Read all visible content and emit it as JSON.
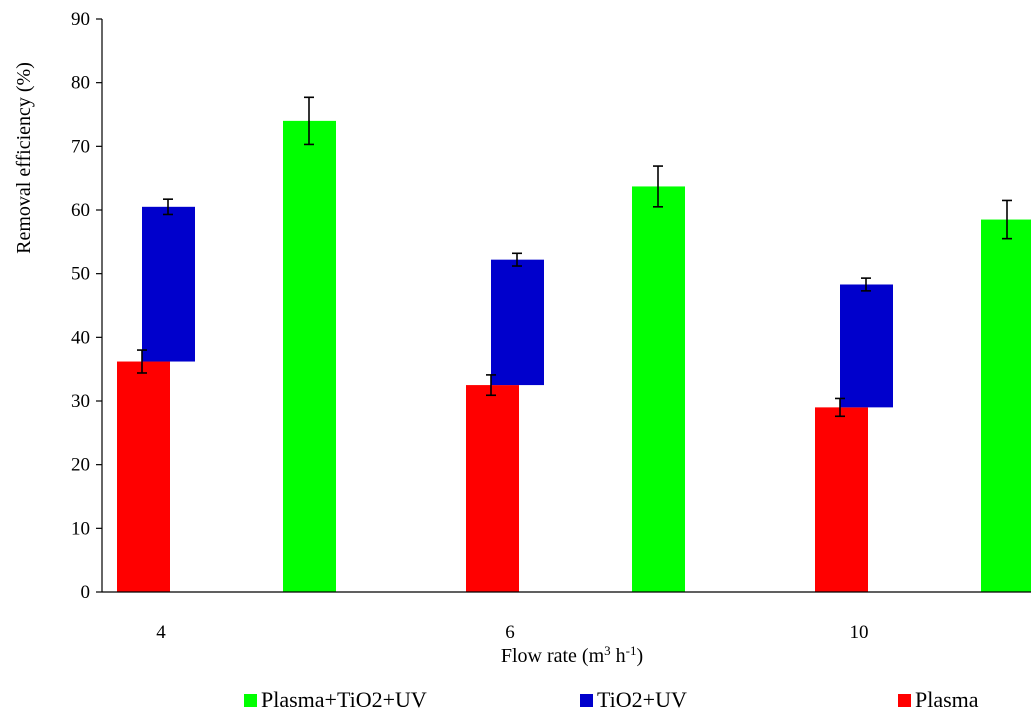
{
  "chart_data": {
    "type": "bar",
    "categories": [
      "4",
      "6",
      "10"
    ],
    "xlabel": {
      "base": "Flow rate (m",
      "sup1": "3",
      "mid": " h",
      "sup2": "-1",
      "end": ")"
    },
    "ylabel": "Removal efficiency (%)",
    "ylim": [
      0,
      90
    ],
    "yticks": [
      0,
      10,
      20,
      30,
      40,
      50,
      60,
      70,
      80,
      90
    ],
    "grid": false,
    "legend_position": "bottom",
    "series": [
      {
        "name": "Plasma",
        "color": "#ff0000",
        "values": [
          36.2,
          32.5,
          29.0
        ],
        "errors": [
          1.8,
          1.6,
          1.4
        ]
      },
      {
        "name": "TiO2+UV",
        "color": "#0000cc",
        "values": [
          60.5,
          52.2,
          48.3
        ],
        "base": [
          36.2,
          32.5,
          29.0
        ],
        "errors": [
          1.2,
          1.0,
          1.0
        ]
      },
      {
        "name": "Plasma+TiO2+UV",
        "color": "#00ff00",
        "values": [
          74.0,
          63.7,
          58.5
        ],
        "errors": [
          3.7,
          3.2,
          3.0
        ]
      }
    ],
    "legend_order": [
      "Plasma+TiO2+UV",
      "TiO2+UV",
      "Plasma"
    ]
  }
}
